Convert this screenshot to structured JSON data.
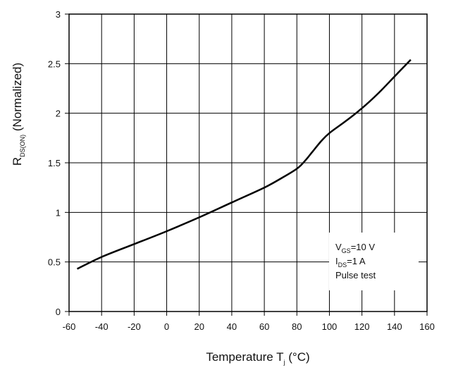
{
  "chart_data": {
    "type": "line",
    "xlabel_main": "Temperature T",
    "xlabel_sub": "j",
    "xlabel_unit": " (°C)",
    "ylabel_main": "R",
    "ylabel_sub": "DS(ON)",
    "ylabel_rest": " (Normalized)",
    "xlim": [
      -60,
      160
    ],
    "ylim": [
      0,
      3
    ],
    "xticks": [
      -60,
      -40,
      -20,
      0,
      20,
      40,
      60,
      80,
      100,
      120,
      140,
      160
    ],
    "xtick_labels": [
      "-60",
      "-40",
      "-20",
      "0",
      "20",
      "40",
      "60",
      "80",
      "100",
      "120",
      "140",
      "160"
    ],
    "yticks": [
      0,
      0.5,
      1,
      1.5,
      2,
      2.5,
      3
    ],
    "ytick_labels": [
      "0",
      "0.5",
      "1",
      "1.5",
      "2",
      "2.5",
      "3"
    ],
    "grid": true,
    "series": [
      {
        "x": [
          -55,
          -40,
          -20,
          0,
          20,
          40,
          60,
          70,
          80,
          85,
          90,
          95,
          100,
          110,
          120,
          130,
          140,
          150
        ],
        "y": [
          0.43,
          0.55,
          0.68,
          0.81,
          0.95,
          1.1,
          1.25,
          1.34,
          1.44,
          1.52,
          1.62,
          1.72,
          1.8,
          1.92,
          2.05,
          2.2,
          2.37,
          2.54
        ]
      }
    ],
    "annotation": {
      "line1_main": "V",
      "line1_sub": "GS",
      "line1_rest": "=10 V",
      "line2_main": "I",
      "line2_sub": "DS",
      "line2_rest": "=1 A",
      "line3": "Pulse test"
    }
  }
}
